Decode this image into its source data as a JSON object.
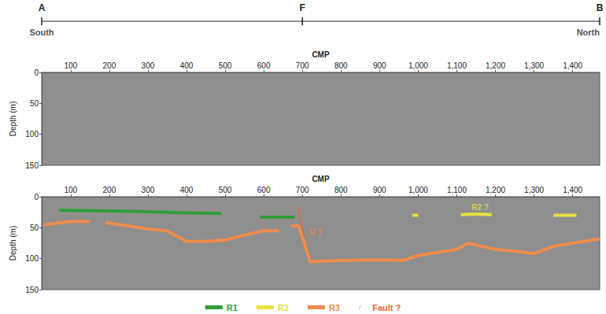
{
  "chart_data": [
    {
      "type": "seismic_section",
      "profile": {
        "labels": [
          {
            "text": "A",
            "x": 25
          },
          {
            "text": "F",
            "x": 700
          },
          {
            "text": "B",
            "x": 1470
          }
        ],
        "ends": [
          {
            "text": "South",
            "x": 25
          },
          {
            "text": "North",
            "x": 1470
          }
        ]
      },
      "xlabel": "CMP",
      "ylabel": "Depth (m)",
      "xlim": [
        25,
        1470
      ],
      "xticks": [
        100,
        200,
        300,
        400,
        500,
        600,
        700,
        800,
        900,
        1000,
        1100,
        1200,
        1300,
        1400
      ],
      "ylim": [
        0,
        150
      ],
      "yticks": [
        0,
        50,
        100,
        150
      ]
    },
    {
      "type": "line",
      "xlabel": "CMP",
      "ylabel": "Depth (m)",
      "xlim": [
        25,
        1470
      ],
      "xticks": [
        100,
        200,
        300,
        400,
        500,
        600,
        700,
        800,
        900,
        1000,
        1100,
        1200,
        1300,
        1400
      ],
      "ylim": [
        0,
        150
      ],
      "yticks": [
        0,
        50,
        100,
        150
      ],
      "legend": "bottom",
      "series": [
        {
          "name": "R1",
          "color": "#2e9e3a",
          "x": [
            70,
            200,
            300,
            400,
            490,
            540,
            590,
            680
          ],
          "values": [
            22,
            23,
            24,
            26,
            27,
            null,
            33,
            33
          ]
        },
        {
          "name": "R2",
          "color": "#e6e040",
          "x": [
            985,
            1000,
            1050,
            1110,
            1150,
            1190,
            1300,
            1350,
            1410
          ],
          "values": [
            30,
            30,
            null,
            29,
            28,
            29,
            null,
            30,
            30
          ]
        },
        {
          "name": "R3",
          "color": "#f08c4c",
          "x": [
            30,
            100,
            150,
            170,
            190,
            250,
            300,
            350,
            400,
            450,
            500,
            550,
            600,
            640,
            655,
            670,
            690,
            705,
            720,
            800,
            900,
            960,
            1000,
            1050,
            1100,
            1130,
            1150,
            1200,
            1250,
            1300,
            1350,
            1400,
            1470
          ],
          "values": [
            45,
            40,
            40,
            null,
            42,
            47,
            52,
            55,
            72,
            72,
            70,
            62,
            55,
            55,
            null,
            47,
            47,
            75,
            105,
            103,
            102,
            103,
            95,
            90,
            85,
            75,
            78,
            85,
            88,
            92,
            80,
            75,
            68
          ]
        },
        {
          "name": "Fault ?",
          "color": "#e8663a",
          "type": "fault",
          "x": [
            688,
            705
          ],
          "values": [
            15,
            65
          ]
        }
      ],
      "annotations": [
        {
          "text": "R2 ?",
          "x": 1160,
          "y": 17,
          "color": "#e6e040"
        },
        {
          "text": "R ?",
          "x": 735,
          "y": 58,
          "color": "#f08c4c"
        }
      ]
    }
  ]
}
